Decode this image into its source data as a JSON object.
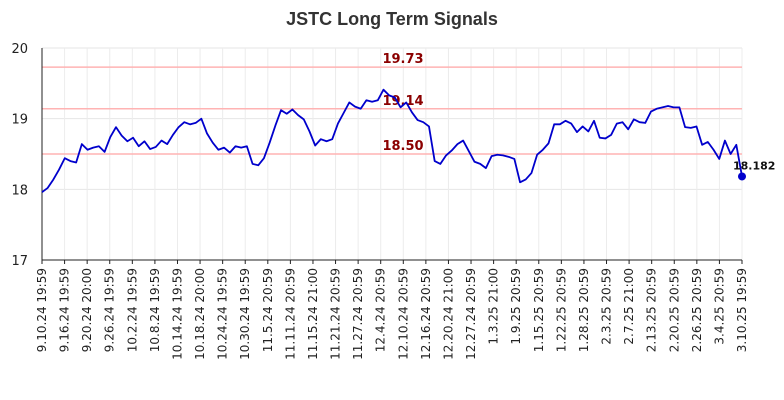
{
  "chart_data": {
    "type": "line",
    "title": "JSTC Long Term Signals",
    "xlabel": "",
    "ylabel": "",
    "ylim": [
      17,
      20
    ],
    "yticks": [
      "17",
      "18",
      "19",
      "20"
    ],
    "xtick_labels": [
      "9.10.24 19:59",
      "9.16.24 19:59",
      "9.20.24 20:00",
      "9.26.24 19:59",
      "10.2.24 19:59",
      "10.8.24 19:59",
      "10.14.24 19:59",
      "10.18.24 20:00",
      "10.24.24 19:59",
      "10.30.24 19:59",
      "11.5.24 20:59",
      "11.11.24 20:59",
      "11.15.24 21:00",
      "11.21.24 20:59",
      "11.27.24 20:59",
      "12.4.24 20:59",
      "12.10.24 20:59",
      "12.16.24 20:59",
      "12.20.24 21:00",
      "12.27.24 20:59",
      "1.3.25 21:00",
      "1.9.25 20:59",
      "1.15.25 20:59",
      "1.22.25 20:59",
      "1.28.25 20:59",
      "2.3.25 20:59",
      "2.7.25 21:00",
      "2.13.25 20:59",
      "2.20.25 20:59",
      "2.26.25 20:59",
      "3.4.25 20:59",
      "3.10.25 19:59"
    ],
    "horizontal_lines": [
      {
        "value": 19.73,
        "label": "19.73",
        "color": "#ffb3b3"
      },
      {
        "value": 19.14,
        "label": "19.14",
        "color": "#ffb3b3"
      },
      {
        "value": 18.5,
        "label": "18.50",
        "color": "#ffb3b3"
      }
    ],
    "series": [
      {
        "color": "#0000cc",
        "values": [
          17.96,
          18.02,
          18.14,
          18.28,
          18.44,
          18.4,
          18.38,
          18.64,
          18.56,
          18.59,
          18.61,
          18.53,
          18.74,
          18.88,
          18.76,
          18.68,
          18.73,
          18.61,
          18.68,
          18.57,
          18.6,
          18.69,
          18.64,
          18.77,
          18.88,
          18.95,
          18.92,
          18.94,
          19.0,
          18.79,
          18.66,
          18.56,
          18.59,
          18.52,
          18.61,
          18.59,
          18.61,
          18.36,
          18.34,
          18.44,
          18.66,
          18.9,
          19.12,
          19.07,
          19.13,
          19.05,
          18.99,
          18.82,
          18.62,
          18.71,
          18.68,
          18.71,
          18.93,
          19.08,
          19.23,
          19.17,
          19.14,
          19.26,
          19.24,
          19.26,
          19.41,
          19.33,
          19.3,
          19.16,
          19.23,
          19.09,
          18.98,
          18.95,
          18.89,
          18.4,
          18.36,
          18.48,
          18.55,
          18.64,
          18.69,
          18.54,
          18.39,
          18.36,
          18.3,
          18.47,
          18.49,
          18.48,
          18.46,
          18.43,
          18.1,
          18.14,
          18.23,
          18.49,
          18.56,
          18.65,
          18.92,
          18.92,
          18.97,
          18.93,
          18.81,
          18.89,
          18.82,
          18.97,
          18.73,
          18.72,
          18.77,
          18.93,
          18.95,
          18.85,
          18.99,
          18.95,
          18.94,
          19.1,
          19.14,
          19.16,
          19.18,
          19.16,
          19.16,
          18.88,
          18.87,
          18.89,
          18.63,
          18.67,
          18.56,
          18.43,
          18.69,
          18.5,
          18.63,
          18.182
        ]
      }
    ],
    "last_value_label": "18.182",
    "grid": true
  }
}
